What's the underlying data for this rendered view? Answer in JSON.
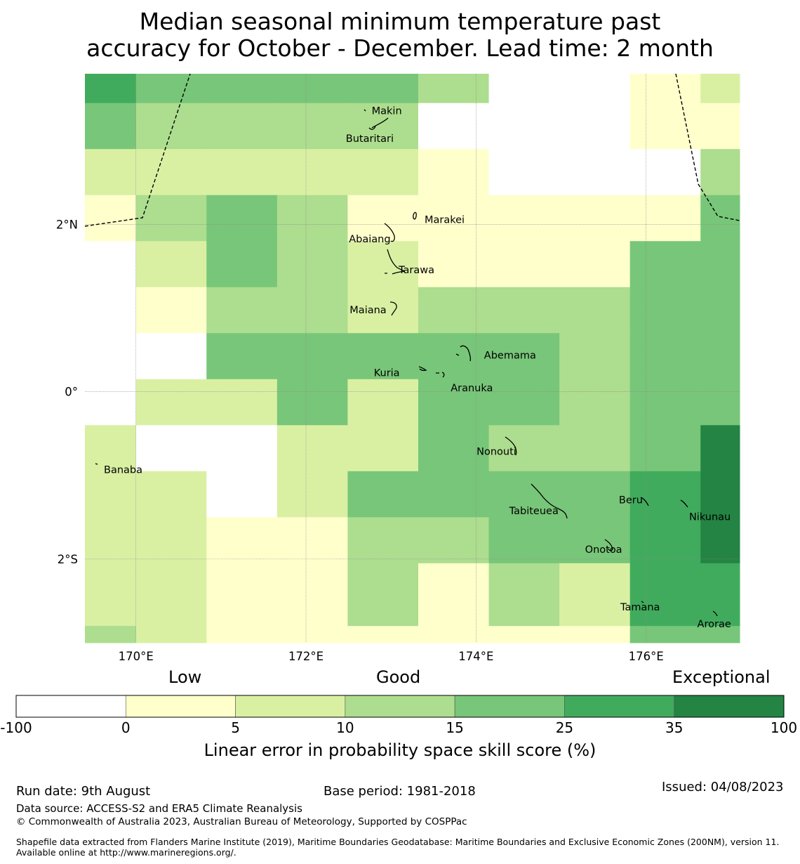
{
  "title": {
    "line1": "Median seasonal minimum temperature past",
    "line2": "accuracy for October - December. Lead time: 2 month"
  },
  "map": {
    "lon_range": [
      169.4,
      177.1
    ],
    "lat_range": [
      -3.0,
      3.8
    ],
    "cell_lon_edges": [
      169.4,
      170.0,
      170.83,
      171.66,
      172.49,
      173.32,
      174.15,
      174.98,
      175.81,
      176.64,
      177.1
    ],
    "cell_lat_edges": [
      3.8,
      3.45,
      2.9,
      2.35,
      1.8,
      1.25,
      0.7,
      0.15,
      -0.4,
      -0.95,
      -1.5,
      -2.05,
      -2.6,
      -2.8,
      -3.0
    ],
    "grid_classes": [
      [
        5,
        4,
        4,
        4,
        4,
        3,
        0,
        0,
        1,
        2
      ],
      [
        4,
        3,
        3,
        3,
        3,
        0,
        0,
        0,
        1,
        1
      ],
      [
        2,
        2,
        2,
        2,
        2,
        1,
        0,
        0,
        0,
        3
      ],
      [
        1,
        3,
        4,
        3,
        1,
        1,
        1,
        1,
        1,
        4
      ],
      [
        0,
        2,
        4,
        3,
        2,
        1,
        1,
        1,
        4,
        4
      ],
      [
        0,
        1,
        3,
        3,
        2,
        3,
        3,
        3,
        4,
        4
      ],
      [
        0,
        0,
        4,
        4,
        4,
        4,
        4,
        3,
        4,
        4
      ],
      [
        0,
        2,
        2,
        4,
        2,
        4,
        4,
        3,
        4,
        4
      ],
      [
        2,
        0,
        0,
        2,
        2,
        4,
        3,
        3,
        4,
        6
      ],
      [
        2,
        2,
        0,
        2,
        4,
        4,
        4,
        4,
        5,
        6
      ],
      [
        2,
        2,
        1,
        1,
        3,
        3,
        4,
        4,
        5,
        6
      ],
      [
        2,
        2,
        1,
        1,
        3,
        1,
        3,
        2,
        5,
        5
      ],
      [
        2,
        2,
        1,
        1,
        3,
        1,
        3,
        2,
        5,
        5
      ],
      [
        3,
        2,
        1,
        1,
        1,
        1,
        1,
        1,
        4,
        4
      ]
    ],
    "x_ticks": [
      {
        "lon": 170,
        "label": "170°E"
      },
      {
        "lon": 172,
        "label": "172°E"
      },
      {
        "lon": 174,
        "label": "174°E"
      },
      {
        "lon": 176,
        "label": "176°E"
      }
    ],
    "y_ticks": [
      {
        "lat": 2,
        "label": "2°N"
      },
      {
        "lat": 0,
        "label": "0°"
      },
      {
        "lat": -2,
        "label": "2°S"
      }
    ],
    "places": [
      {
        "name": "Makin",
        "lon": 172.95,
        "lat": 3.35
      },
      {
        "name": "Butaritari",
        "lon": 172.75,
        "lat": 3.02
      },
      {
        "name": "Marakei",
        "lon": 173.63,
        "lat": 2.05
      },
      {
        "name": "Abaiang",
        "lon": 172.75,
        "lat": 1.82
      },
      {
        "name": "Tarawa",
        "lon": 173.3,
        "lat": 1.45
      },
      {
        "name": "Maiana",
        "lon": 172.73,
        "lat": 0.97
      },
      {
        "name": "Abemama",
        "lon": 174.4,
        "lat": 0.43
      },
      {
        "name": "Kuria",
        "lon": 172.95,
        "lat": 0.22
      },
      {
        "name": "Aranuka",
        "lon": 173.95,
        "lat": 0.04
      },
      {
        "name": "Nonouti",
        "lon": 174.24,
        "lat": -0.72
      },
      {
        "name": "Banaba",
        "lon": 169.85,
        "lat": -0.94
      },
      {
        "name": "Tabiteuea",
        "lon": 174.68,
        "lat": -1.43
      },
      {
        "name": "Beru",
        "lon": 175.82,
        "lat": -1.3
      },
      {
        "name": "Nikunau",
        "lon": 176.75,
        "lat": -1.5
      },
      {
        "name": "Onotoa",
        "lon": 175.5,
        "lat": -1.89
      },
      {
        "name": "Tamana",
        "lon": 175.93,
        "lat": -2.58
      },
      {
        "name": "Arorae",
        "lon": 176.8,
        "lat": -2.78
      }
    ]
  },
  "legend": {
    "category_labels": [
      "Low",
      "Good",
      "Exceptional"
    ],
    "bins": [
      {
        "from": -100,
        "to": 0,
        "color": "#ffffff"
      },
      {
        "from": 0,
        "to": 5,
        "color": "#ffffcc"
      },
      {
        "from": 5,
        "to": 10,
        "color": "#d9f0a3"
      },
      {
        "from": 10,
        "to": 15,
        "color": "#addd8e"
      },
      {
        "from": 15,
        "to": 25,
        "color": "#78c679"
      },
      {
        "from": 25,
        "to": 35,
        "color": "#41ab5d"
      },
      {
        "from": 35,
        "to": 100,
        "color": "#238443"
      }
    ],
    "tick_labels": [
      "-100",
      "0",
      "5",
      "10",
      "15",
      "25",
      "35",
      "100"
    ],
    "title": "Linear error in probability space skill score (%)"
  },
  "footer": {
    "run_date": "Run date: 9th August",
    "base_period": "Base period: 1981-2018",
    "issued": "Issued: 04/08/2023",
    "data_source": "Data source: ACCESS-S2 and ERA5 Climate Reanalysis",
    "copyright": "© Commonwealth of Australia 2023, Australian Bureau of Meteorology, Supported by COSPPac",
    "shapefile": "Shapefile data extracted from Flanders Marine Institute (2019), Maritime Boundaries Geodatabase: Maritime Boundaries and Exclusive Economic Zones (200NM), version 11. Available online at http://www.marineregions.org/."
  }
}
